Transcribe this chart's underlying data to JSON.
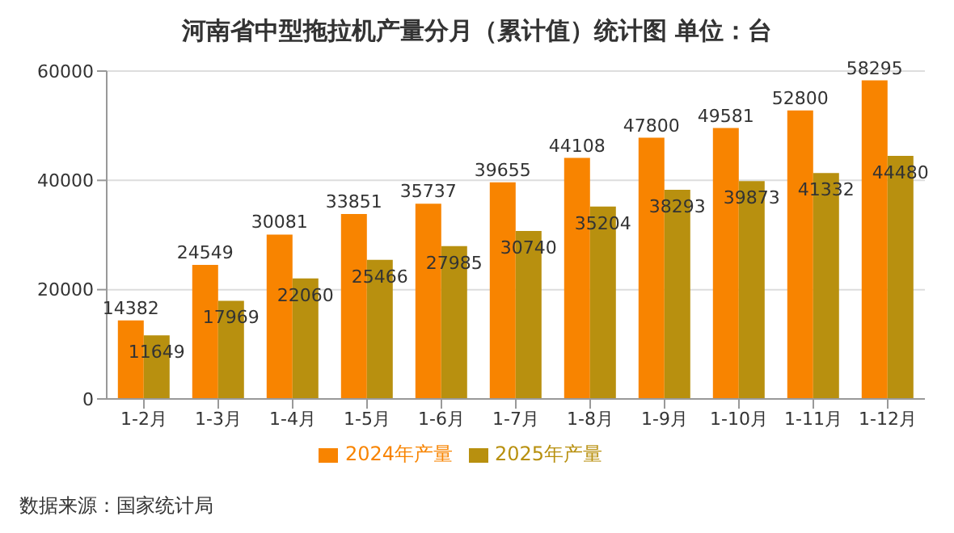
{
  "chart_data": {
    "type": "bar",
    "title": "河南省中型拖拉机产量分月（累计值）统计图 单位：台",
    "categories": [
      "1-2月",
      "1-3月",
      "1-4月",
      "1-5月",
      "1-6月",
      "1-7月",
      "1-8月",
      "1-9月",
      "1-10月",
      "1-11月",
      "1-12月"
    ],
    "series": [
      {
        "name": "2024年产量",
        "color": "#f88400",
        "values": [
          14382,
          24549,
          30081,
          33851,
          35737,
          39655,
          44108,
          47800,
          49581,
          52800,
          58295
        ]
      },
      {
        "name": "2025年产量",
        "color": "#b8900f",
        "values": [
          11649,
          17969,
          22060,
          25466,
          27985,
          30740,
          35204,
          38293,
          39873,
          41332,
          44480
        ]
      }
    ],
    "ylim": [
      0,
      60000
    ],
    "yticks": [
      0,
      20000,
      40000,
      60000
    ],
    "grid": "y",
    "legend": "bottom",
    "data_labels": true,
    "annotations": [
      "数据来源：国家统计局"
    ]
  }
}
